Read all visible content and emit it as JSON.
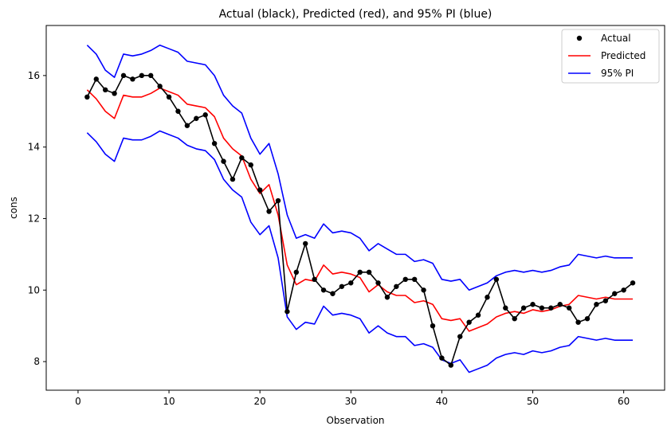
{
  "chart_data": {
    "type": "line",
    "title": "Actual (black), Predicted (red), and 95% PI (blue)",
    "xlabel": "Observation",
    "ylabel": "cons",
    "xlim": [
      -3.5,
      64.5
    ],
    "ylim": [
      7.2,
      17.4
    ],
    "xticks": [
      0,
      10,
      20,
      30,
      40,
      50,
      60
    ],
    "yticks": [
      8,
      10,
      12,
      14,
      16
    ],
    "grid": false,
    "legend_position": "top-right",
    "x": [
      1,
      2,
      3,
      4,
      5,
      6,
      7,
      8,
      9,
      10,
      11,
      12,
      13,
      14,
      15,
      16,
      17,
      18,
      19,
      20,
      21,
      22,
      23,
      24,
      25,
      26,
      27,
      28,
      29,
      30,
      31,
      32,
      33,
      34,
      35,
      36,
      37,
      38,
      39,
      40,
      41,
      42,
      43,
      44,
      45,
      46,
      47,
      48,
      49,
      50,
      51,
      52,
      53,
      54,
      55,
      56,
      57,
      58,
      59,
      60,
      61
    ],
    "series": [
      {
        "name": "Actual",
        "kind": "line+markers",
        "color": "#000000",
        "values": [
          15.4,
          15.9,
          15.6,
          15.5,
          16.0,
          15.9,
          16.0,
          16.0,
          15.7,
          15.4,
          15.0,
          14.6,
          14.8,
          14.9,
          14.1,
          13.6,
          13.1,
          13.7,
          13.5,
          12.8,
          12.2,
          12.5,
          9.4,
          10.5,
          11.3,
          10.3,
          10.0,
          9.9,
          10.1,
          10.2,
          10.5,
          10.5,
          10.2,
          9.8,
          10.1,
          10.3,
          10.3,
          10.0,
          9.0,
          8.1,
          7.9,
          8.7,
          9.1,
          9.3,
          9.8,
          10.3,
          9.5,
          9.2,
          9.5,
          9.6,
          9.5,
          9.5,
          9.6,
          9.5,
          9.1,
          9.2,
          9.6,
          9.7,
          9.9,
          10.0,
          10.2
        ]
      },
      {
        "name": "Predicted",
        "kind": "line",
        "color": "#ff0000",
        "values": [
          15.6,
          15.35,
          15.0,
          14.8,
          15.45,
          15.4,
          15.4,
          15.5,
          15.65,
          15.55,
          15.45,
          15.2,
          15.15,
          15.1,
          14.85,
          14.25,
          13.95,
          13.75,
          13.1,
          12.7,
          12.95,
          12.1,
          10.7,
          10.15,
          10.3,
          10.25,
          10.7,
          10.45,
          10.5,
          10.45,
          10.35,
          9.95,
          10.15,
          9.95,
          9.85,
          9.85,
          9.65,
          9.7,
          9.6,
          9.2,
          9.15,
          9.2,
          8.85,
          8.95,
          9.05,
          9.25,
          9.35,
          9.4,
          9.35,
          9.45,
          9.4,
          9.45,
          9.55,
          9.6,
          9.85,
          9.8,
          9.75,
          9.8,
          9.75,
          9.75,
          9.75
        ]
      },
      {
        "name": "95% PI",
        "kind": "line",
        "color": "#0000ff",
        "values": [
          16.85,
          16.6,
          16.15,
          15.95,
          16.6,
          16.55,
          16.6,
          16.7,
          16.85,
          16.75,
          16.65,
          16.4,
          16.35,
          16.3,
          16.0,
          15.45,
          15.15,
          14.95,
          14.25,
          13.8,
          14.1,
          13.25,
          12.1,
          11.45,
          11.55,
          11.45,
          11.85,
          11.6,
          11.65,
          11.6,
          11.45,
          11.1,
          11.3,
          11.15,
          11.0,
          11.0,
          10.8,
          10.85,
          10.75,
          10.3,
          10.25,
          10.3,
          10.0,
          10.1,
          10.2,
          10.4,
          10.5,
          10.55,
          10.5,
          10.55,
          10.5,
          10.55,
          10.65,
          10.7,
          11.0,
          10.95,
          10.9,
          10.95,
          10.9,
          10.9,
          10.9
        ]
      },
      {
        "kind": "line",
        "color": "#0000ff",
        "values": [
          14.4,
          14.15,
          13.8,
          13.6,
          14.25,
          14.2,
          14.2,
          14.3,
          14.45,
          14.35,
          14.25,
          14.05,
          13.95,
          13.9,
          13.65,
          13.1,
          12.8,
          12.6,
          11.9,
          11.55,
          11.8,
          10.9,
          9.25,
          8.9,
          9.1,
          9.05,
          9.55,
          9.3,
          9.35,
          9.3,
          9.2,
          8.8,
          9.0,
          8.8,
          8.7,
          8.7,
          8.45,
          8.5,
          8.4,
          8.05,
          7.95,
          8.05,
          7.7,
          7.8,
          7.9,
          8.1,
          8.2,
          8.25,
          8.2,
          8.3,
          8.25,
          8.3,
          8.4,
          8.45,
          8.7,
          8.65,
          8.6,
          8.65,
          8.6,
          8.6,
          8.6
        ]
      }
    ],
    "legend": [
      {
        "label": "Actual",
        "symbol": "marker",
        "color": "#000000"
      },
      {
        "label": "Predicted",
        "symbol": "line",
        "color": "#ff0000"
      },
      {
        "label": "95% PI",
        "symbol": "line",
        "color": "#0000ff"
      }
    ]
  }
}
